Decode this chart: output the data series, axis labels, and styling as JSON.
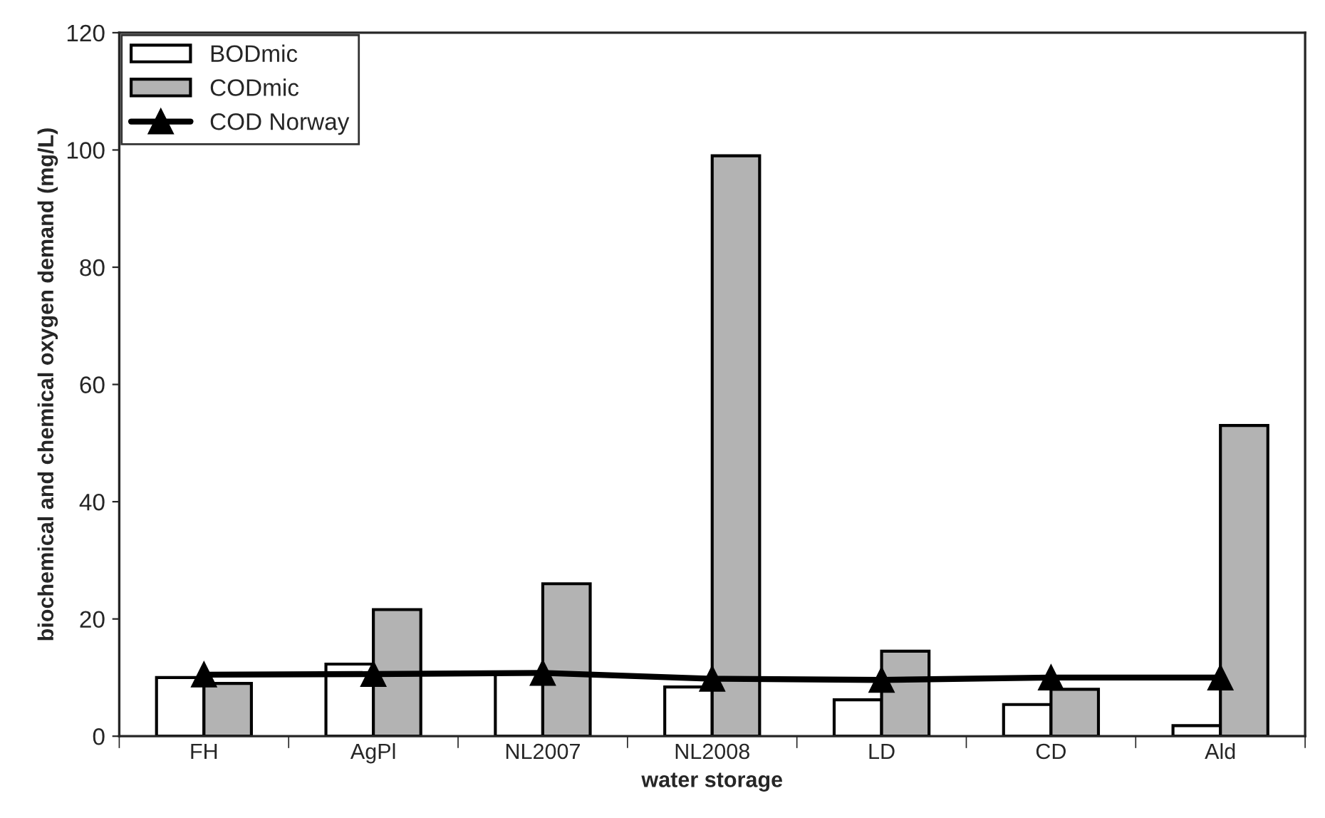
{
  "chart_data": {
    "type": "bar",
    "xlabel": "water storage",
    "ylabel": "biochemical and chemical oxygen demand (mg/L)",
    "categories": [
      "FH",
      "AgPl",
      "NL2007",
      "NL2008",
      "LD",
      "CD",
      "Ald"
    ],
    "series": [
      {
        "name": "BODmic",
        "color": "#ffffff",
        "values": [
          10,
          12.3,
          10.6,
          8.4,
          6.2,
          5.4,
          1.8
        ]
      },
      {
        "name": "CODmic",
        "color": "#b3b3b3",
        "values": [
          9,
          21.6,
          26,
          99,
          14.5,
          8,
          53
        ]
      },
      {
        "name": "COD Norway",
        "type": "line",
        "color": "#000000",
        "marker": "triangle",
        "values": [
          10.5,
          10.6,
          10.8,
          9.8,
          9.6,
          10,
          10
        ]
      }
    ],
    "ylim": [
      0,
      120
    ],
    "yticks": [
      0,
      20,
      40,
      60,
      80,
      100,
      120
    ],
    "grid": false,
    "legend": "top left"
  }
}
